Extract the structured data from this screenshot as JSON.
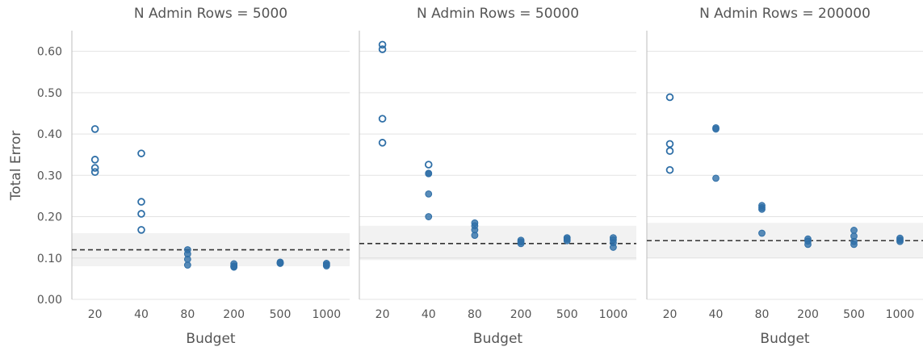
{
  "chart_data": {
    "type": "scatter",
    "ylabel": "Total Error",
    "xlabel": "Budget",
    "categories": [
      "20",
      "40",
      "80",
      "200",
      "500",
      "1000"
    ],
    "ylim": [
      0,
      0.65
    ],
    "yticks": [
      "0.00",
      "0.10",
      "0.20",
      "0.30",
      "0.40",
      "0.50",
      "0.60"
    ],
    "ytick_values": [
      0,
      0.1,
      0.2,
      0.3,
      0.4,
      0.5,
      0.6
    ],
    "grid": true,
    "colors": {
      "marker": "#2f6fa7",
      "band": "#cfcfcf",
      "ref_line": "#333333"
    },
    "panels": [
      {
        "title": "N Admin Rows = 5000",
        "reference": 0.12,
        "band": [
          0.08,
          0.16
        ],
        "points": [
          {
            "x": "20",
            "y": 0.412,
            "style": "open"
          },
          {
            "x": "20",
            "y": 0.338,
            "style": "open"
          },
          {
            "x": "20",
            "y": 0.318,
            "style": "open"
          },
          {
            "x": "20",
            "y": 0.308,
            "style": "open"
          },
          {
            "x": "40",
            "y": 0.353,
            "style": "open"
          },
          {
            "x": "40",
            "y": 0.236,
            "style": "open"
          },
          {
            "x": "40",
            "y": 0.207,
            "style": "open"
          },
          {
            "x": "40",
            "y": 0.168,
            "style": "open"
          },
          {
            "x": "80",
            "y": 0.12,
            "style": "filled"
          },
          {
            "x": "80",
            "y": 0.11,
            "style": "filled"
          },
          {
            "x": "80",
            "y": 0.097,
            "style": "filled"
          },
          {
            "x": "80",
            "y": 0.083,
            "style": "filled"
          },
          {
            "x": "200",
            "y": 0.086,
            "style": "filled"
          },
          {
            "x": "200",
            "y": 0.081,
            "style": "filled"
          },
          {
            "x": "200",
            "y": 0.079,
            "style": "filled"
          },
          {
            "x": "200",
            "y": 0.078,
            "style": "filled"
          },
          {
            "x": "500",
            "y": 0.09,
            "style": "filled"
          },
          {
            "x": "500",
            "y": 0.088,
            "style": "filled"
          },
          {
            "x": "500",
            "y": 0.087,
            "style": "filled"
          },
          {
            "x": "1000",
            "y": 0.087,
            "style": "filled"
          },
          {
            "x": "1000",
            "y": 0.084,
            "style": "filled"
          },
          {
            "x": "1000",
            "y": 0.081,
            "style": "filled"
          }
        ]
      },
      {
        "title": "N Admin Rows = 50000",
        "reference": 0.135,
        "band": [
          0.095,
          0.178
        ],
        "points": [
          {
            "x": "20",
            "y": 0.616,
            "style": "open"
          },
          {
            "x": "20",
            "y": 0.605,
            "style": "open"
          },
          {
            "x": "20",
            "y": 0.437,
            "style": "open"
          },
          {
            "x": "20",
            "y": 0.379,
            "style": "open"
          },
          {
            "x": "40",
            "y": 0.326,
            "style": "open"
          },
          {
            "x": "40",
            "y": 0.305,
            "style": "filled"
          },
          {
            "x": "40",
            "y": 0.304,
            "style": "filled"
          },
          {
            "x": "40",
            "y": 0.255,
            "style": "filled"
          },
          {
            "x": "40",
            "y": 0.2,
            "style": "filled"
          },
          {
            "x": "80",
            "y": 0.185,
            "style": "filled"
          },
          {
            "x": "80",
            "y": 0.178,
            "style": "filled"
          },
          {
            "x": "80",
            "y": 0.168,
            "style": "filled"
          },
          {
            "x": "80",
            "y": 0.155,
            "style": "filled"
          },
          {
            "x": "200",
            "y": 0.143,
            "style": "filled"
          },
          {
            "x": "200",
            "y": 0.139,
            "style": "filled"
          },
          {
            "x": "200",
            "y": 0.135,
            "style": "filled"
          },
          {
            "x": "500",
            "y": 0.149,
            "style": "filled"
          },
          {
            "x": "500",
            "y": 0.146,
            "style": "filled"
          },
          {
            "x": "500",
            "y": 0.142,
            "style": "filled"
          },
          {
            "x": "1000",
            "y": 0.149,
            "style": "filled"
          },
          {
            "x": "1000",
            "y": 0.144,
            "style": "filled"
          },
          {
            "x": "1000",
            "y": 0.137,
            "style": "filled"
          },
          {
            "x": "1000",
            "y": 0.126,
            "style": "filled"
          }
        ]
      },
      {
        "title": "N Admin Rows = 200000",
        "reference": 0.142,
        "band": [
          0.1,
          0.185
        ],
        "points": [
          {
            "x": "20",
            "y": 0.489,
            "style": "open"
          },
          {
            "x": "20",
            "y": 0.376,
            "style": "open"
          },
          {
            "x": "20",
            "y": 0.359,
            "style": "open"
          },
          {
            "x": "20",
            "y": 0.313,
            "style": "open"
          },
          {
            "x": "40",
            "y": 0.415,
            "style": "filled"
          },
          {
            "x": "40",
            "y": 0.412,
            "style": "filled"
          },
          {
            "x": "40",
            "y": 0.293,
            "style": "filled"
          },
          {
            "x": "80",
            "y": 0.227,
            "style": "filled"
          },
          {
            "x": "80",
            "y": 0.222,
            "style": "filled"
          },
          {
            "x": "80",
            "y": 0.218,
            "style": "filled"
          },
          {
            "x": "80",
            "y": 0.16,
            "style": "filled"
          },
          {
            "x": "200",
            "y": 0.146,
            "style": "filled"
          },
          {
            "x": "200",
            "y": 0.141,
            "style": "filled"
          },
          {
            "x": "200",
            "y": 0.133,
            "style": "filled"
          },
          {
            "x": "500",
            "y": 0.167,
            "style": "filled"
          },
          {
            "x": "500",
            "y": 0.153,
            "style": "filled"
          },
          {
            "x": "500",
            "y": 0.14,
            "style": "filled"
          },
          {
            "x": "500",
            "y": 0.133,
            "style": "filled"
          },
          {
            "x": "1000",
            "y": 0.148,
            "style": "filled"
          },
          {
            "x": "1000",
            "y": 0.144,
            "style": "filled"
          },
          {
            "x": "1000",
            "y": 0.14,
            "style": "filled"
          }
        ]
      }
    ]
  }
}
